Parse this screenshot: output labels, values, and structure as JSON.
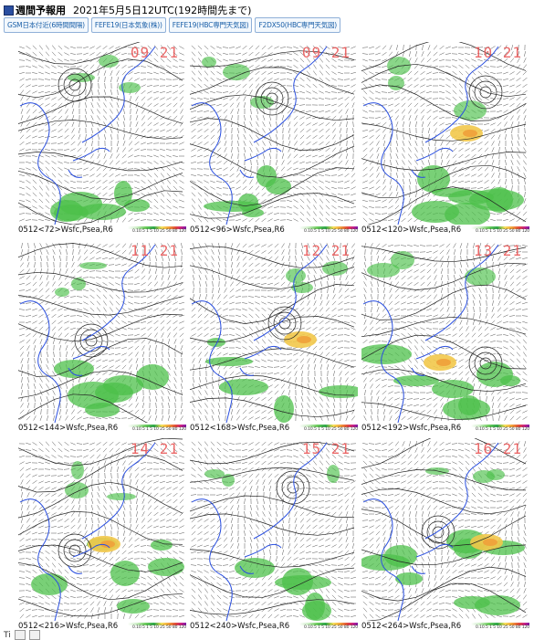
{
  "header": {
    "title": "週間予報用",
    "subtitle": "2021年5月5日12UTC(192時間先まで)",
    "icon": "square-icon"
  },
  "tabs": [
    {
      "label": "GSM日本付近(6時間間隔)"
    },
    {
      "label": "FEFE19(日本気象(株))"
    },
    {
      "label": "FEFE19(HBC専門天気図)"
    },
    {
      "label": "F2DX50(HBC専門天気図)"
    }
  ],
  "colorbar": {
    "ticks": "0.10.5 1  5 10 25 50 80 120"
  },
  "panels": [
    {
      "caption": "0512<72>Wsfc,Psea,R6",
      "stamp": "09 21"
    },
    {
      "caption": "0512<96>Wsfc,Psea,R6",
      "stamp": "09 21"
    },
    {
      "caption": "0512<120>Wsfc,Psea,R6",
      "stamp": "10 21"
    },
    {
      "caption": "0512<144>Wsfc,Psea,R6",
      "stamp": "11 21"
    },
    {
      "caption": "0512<168>Wsfc,Psea,R6",
      "stamp": "12 21"
    },
    {
      "caption": "0512<192>Wsfc,Psea,R6",
      "stamp": "13 21"
    },
    {
      "caption": "0512<216>Wsfc,Psea,R6",
      "stamp": "14 21"
    },
    {
      "caption": "0512<240>Wsfc,Psea,R6",
      "stamp": "15 21"
    },
    {
      "caption": "0512<264>Wsfc,Psea,R6",
      "stamp": "16 21"
    }
  ],
  "footer": {
    "label": "Ti"
  }
}
